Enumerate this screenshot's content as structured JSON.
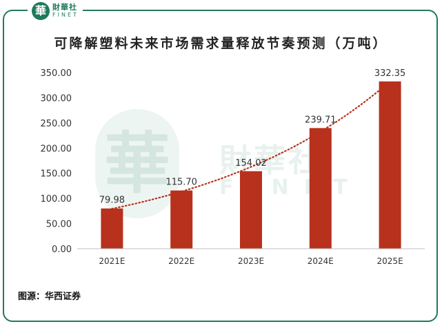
{
  "brand": {
    "logo_char": "華",
    "name_cn": "財華社",
    "name_en": "FINET"
  },
  "watermark": {
    "logo_char": "華",
    "name_cn": "財華社",
    "name_en": "FINET"
  },
  "source": "图源：华西证券",
  "colors": {
    "bar": "#b8311d",
    "trend": "#b8311d",
    "frame": "#1f7a5a"
  },
  "chart_data": {
    "type": "bar",
    "title": "可降解塑料未来市场需求量释放节奏预测（万吨）",
    "categories": [
      "2021E",
      "2022E",
      "2023E",
      "2024E",
      "2025E"
    ],
    "values": [
      79.98,
      115.7,
      154.02,
      239.71,
      332.35
    ],
    "value_labels": [
      "79.98",
      "115.70",
      "154.02",
      "239.71",
      "332.35"
    ],
    "y_ticks": [
      "0.00",
      "50.00",
      "100.00",
      "150.00",
      "200.00",
      "250.00",
      "300.00",
      "350.00"
    ],
    "ylim": [
      0,
      350
    ],
    "grid": false,
    "trendline": "dotted exponential",
    "legend": "none"
  }
}
